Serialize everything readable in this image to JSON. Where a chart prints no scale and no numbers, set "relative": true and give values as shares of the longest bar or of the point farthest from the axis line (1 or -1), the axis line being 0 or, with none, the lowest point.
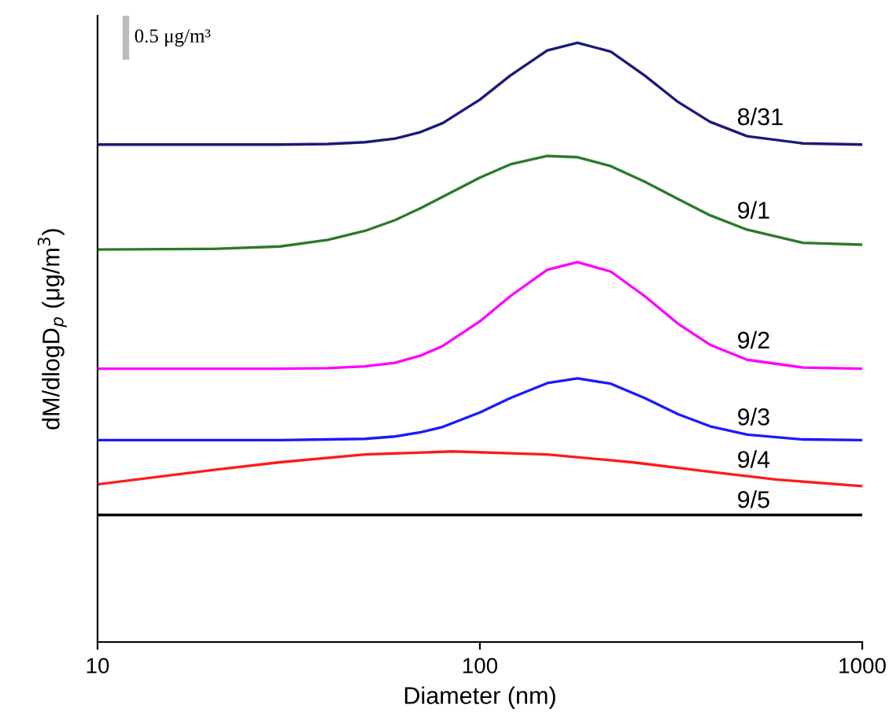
{
  "chart_data": {
    "type": "line",
    "relative": true,
    "xlabel": "Diameter (nm)",
    "ylabel": "dM/dlogD$_{p}$ (μg/m$^{3}$)",
    "log": "x",
    "xlim": [
      10,
      1000
    ],
    "xticks": [
      10,
      100,
      1000
    ],
    "grid": false,
    "legend": false,
    "marker": "none",
    "line_style": "solid",
    "tick_labels": "x",
    "annotations": [
      "0.5 μg/m³"
    ],
    "series": [
      {
        "name": "8/31",
        "color": "#1a1a7a",
        "x": [
          10,
          20,
          30,
          40,
          50,
          60,
          70,
          80,
          100,
          120,
          150,
          180,
          220,
          270,
          330,
          400,
          500,
          700,
          1000
        ],
        "values": [
          0.83,
          0.83,
          0.83,
          0.831,
          0.834,
          0.84,
          0.851,
          0.866,
          0.905,
          0.945,
          0.987,
          1.0,
          0.985,
          0.945,
          0.901,
          0.868,
          0.844,
          0.832,
          0.83
        ]
      },
      {
        "name": "9/1",
        "color": "#2a7a2a",
        "x": [
          10,
          20,
          30,
          40,
          50,
          60,
          70,
          80,
          100,
          120,
          150,
          180,
          220,
          270,
          330,
          400,
          500,
          700,
          1000
        ],
        "values": [
          0.655,
          0.656,
          0.66,
          0.671,
          0.686,
          0.704,
          0.724,
          0.743,
          0.775,
          0.797,
          0.811,
          0.809,
          0.794,
          0.768,
          0.739,
          0.712,
          0.688,
          0.666,
          0.663
        ]
      },
      {
        "name": "9/2",
        "color": "#ff00ff",
        "x": [
          10,
          20,
          30,
          40,
          50,
          60,
          70,
          80,
          100,
          120,
          150,
          180,
          220,
          270,
          330,
          400,
          500,
          700,
          1000
        ],
        "values": [
          0.456,
          0.456,
          0.456,
          0.457,
          0.46,
          0.466,
          0.478,
          0.494,
          0.535,
          0.577,
          0.621,
          0.634,
          0.618,
          0.577,
          0.531,
          0.496,
          0.471,
          0.458,
          0.456
        ]
      },
      {
        "name": "9/3",
        "color": "#1a1aff",
        "x": [
          10,
          20,
          30,
          40,
          50,
          60,
          70,
          80,
          100,
          120,
          150,
          180,
          220,
          270,
          330,
          400,
          500,
          700,
          1000
        ],
        "values": [
          0.337,
          0.337,
          0.337,
          0.338,
          0.339,
          0.343,
          0.35,
          0.359,
          0.383,
          0.407,
          0.432,
          0.44,
          0.431,
          0.407,
          0.38,
          0.36,
          0.346,
          0.338,
          0.337
        ]
      },
      {
        "name": "9/4",
        "color": "#ff1a1a",
        "x": [
          10,
          20,
          30,
          50,
          85,
          150,
          250,
          400,
          600,
          1000
        ],
        "values": [
          0.263,
          0.287,
          0.3,
          0.313,
          0.318,
          0.313,
          0.3,
          0.284,
          0.271,
          0.26
        ]
      },
      {
        "name": "9/5",
        "color": "#000000",
        "x": [
          10,
          1000
        ],
        "values": [
          0.212,
          0.212
        ]
      }
    ]
  }
}
